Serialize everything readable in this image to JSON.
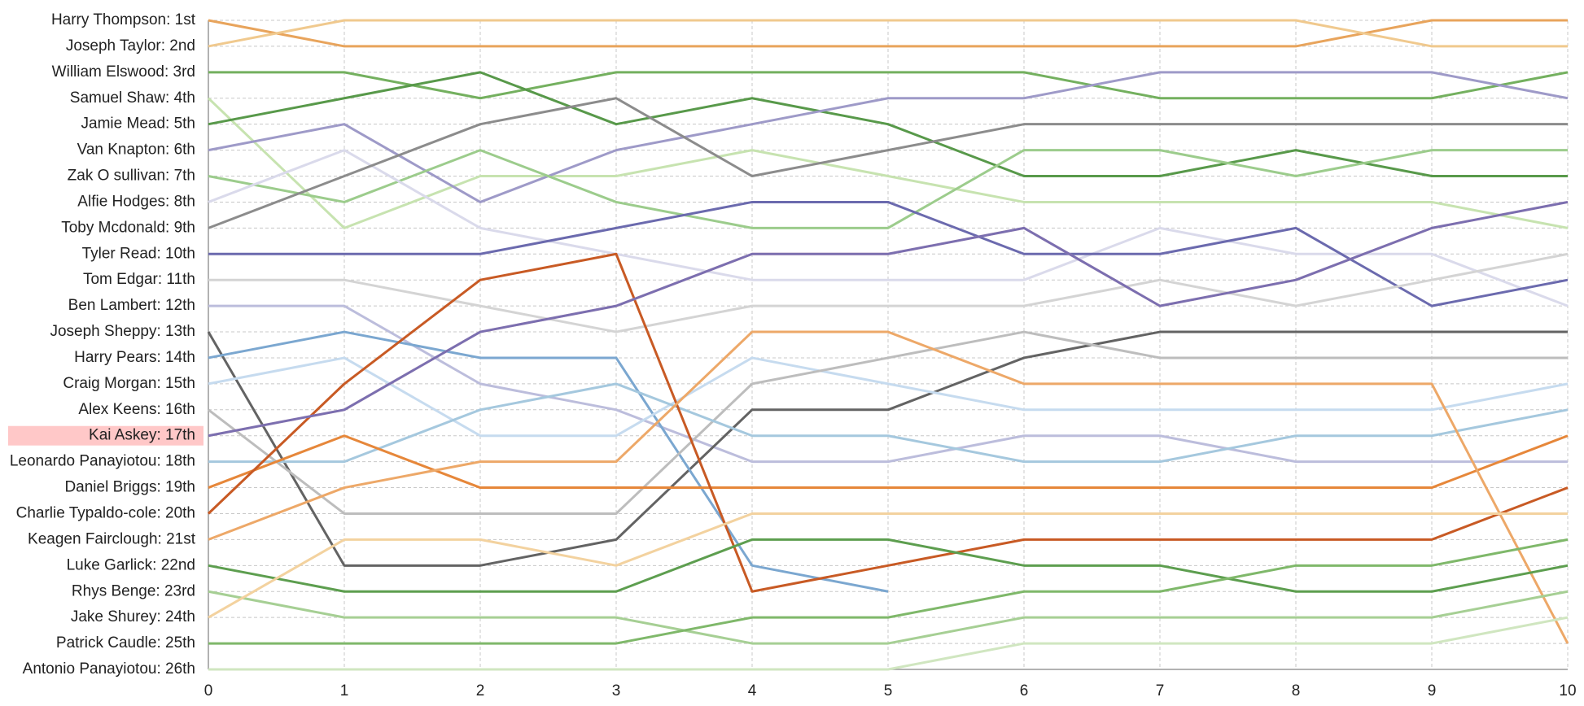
{
  "chart_data": {
    "type": "line",
    "x": [
      0,
      1,
      2,
      3,
      4,
      5,
      6,
      7,
      8,
      9,
      10
    ],
    "xlim": [
      0,
      10
    ],
    "xticks": [
      0,
      1,
      2,
      3,
      4,
      5,
      6,
      7,
      8,
      9,
      10
    ],
    "ylim": [
      1,
      26
    ],
    "y_inverted": true,
    "grid": true,
    "highlight": 16,
    "highlight_color": "#ffc8c8",
    "yticks": [
      {
        "value": 1,
        "label": "Harry Thompson: 1st"
      },
      {
        "value": 2,
        "label": "Joseph Taylor: 2nd"
      },
      {
        "value": 3,
        "label": "William Elswood: 3rd"
      },
      {
        "value": 4,
        "label": "Samuel Shaw: 4th"
      },
      {
        "value": 5,
        "label": "Jamie Mead: 5th"
      },
      {
        "value": 6,
        "label": "Van Knapton: 6th"
      },
      {
        "value": 7,
        "label": "Zak O sullivan: 7th"
      },
      {
        "value": 8,
        "label": "Alfie Hodges: 8th"
      },
      {
        "value": 9,
        "label": "Toby Mcdonald: 9th"
      },
      {
        "value": 10,
        "label": "Tyler Read: 10th"
      },
      {
        "value": 11,
        "label": "Tom Edgar: 11th"
      },
      {
        "value": 12,
        "label": "Ben Lambert: 12th"
      },
      {
        "value": 13,
        "label": "Joseph Sheppy: 13th"
      },
      {
        "value": 14,
        "label": "Harry Pears: 14th"
      },
      {
        "value": 15,
        "label": "Craig Morgan: 15th"
      },
      {
        "value": 16,
        "label": "Alex Keens: 16th"
      },
      {
        "value": 17,
        "label": "Kai Askey: 17th"
      },
      {
        "value": 18,
        "label": "Leonardo Panayiotou: 18th"
      },
      {
        "value": 19,
        "label": "Daniel Briggs: 19th"
      },
      {
        "value": 20,
        "label": "Charlie Typaldo-cole: 20th"
      },
      {
        "value": 21,
        "label": "Keagen Fairclough: 21st"
      },
      {
        "value": 22,
        "label": "Luke Garlick: 22nd"
      },
      {
        "value": 23,
        "label": "Rhys Benge: 23rd"
      },
      {
        "value": 24,
        "label": "Jake Shurey: 24th"
      },
      {
        "value": 25,
        "label": "Patrick Caudle: 25th"
      },
      {
        "value": 26,
        "label": "Antonio Panayiotou: 26th"
      }
    ],
    "series": [
      {
        "color": "#e8a45c",
        "values": [
          1,
          2,
          2,
          2,
          2,
          2,
          2,
          2,
          2,
          1,
          1
        ]
      },
      {
        "color": "#f0c98e",
        "values": [
          2,
          1,
          1,
          1,
          1,
          1,
          1,
          1,
          1,
          2,
          2
        ]
      },
      {
        "color": "#74b05f",
        "values": [
          3,
          3,
          4,
          3,
          3,
          3,
          3,
          4,
          4,
          4,
          3
        ]
      },
      {
        "color": "#c7e3b0",
        "values": [
          4,
          9,
          7,
          7,
          6,
          7,
          8,
          8,
          8,
          8,
          9
        ]
      },
      {
        "color": "#58994a",
        "values": [
          5,
          4,
          3,
          5,
          4,
          5,
          7,
          7,
          6,
          7,
          7
        ]
      },
      {
        "color": "#9e9ac8",
        "values": [
          6,
          5,
          8,
          6,
          5,
          4,
          4,
          3,
          3,
          3,
          4
        ]
      },
      {
        "color": "#9ccc8c",
        "values": [
          7,
          8,
          6,
          8,
          9,
          9,
          6,
          6,
          7,
          6,
          6
        ]
      },
      {
        "color": "#dadaeb",
        "values": [
          8,
          6,
          9,
          10,
          11,
          11,
          11,
          9,
          10,
          10,
          12
        ]
      },
      {
        "color": "#8c8c8c",
        "values": [
          9,
          7,
          5,
          4,
          7,
          6,
          5,
          5,
          5,
          5,
          5
        ]
      },
      {
        "color": "#6b6aae",
        "values": [
          10,
          10,
          10,
          9,
          8,
          8,
          10,
          10,
          9,
          12,
          11
        ]
      },
      {
        "color": "#d4d4d4",
        "values": [
          11,
          11,
          12,
          13,
          12,
          12,
          12,
          11,
          12,
          11,
          10
        ]
      },
      {
        "color": "#bcbddc",
        "values": [
          12,
          12,
          15,
          16,
          18,
          18,
          17,
          17,
          18,
          18,
          18
        ]
      },
      {
        "color": "#636363",
        "values": [
          13,
          22,
          22,
          21,
          16,
          16,
          14,
          13,
          13,
          13,
          13
        ]
      },
      {
        "color": "#7ba7d0",
        "values": [
          14,
          13,
          14,
          14,
          22,
          23,
          null,
          null,
          null,
          null,
          null
        ]
      },
      {
        "color": "#c6dbef",
        "values": [
          15,
          14,
          17,
          17,
          14,
          15,
          16,
          16,
          16,
          16,
          15
        ]
      },
      {
        "color": "#bdbdbd",
        "values": [
          16,
          20,
          20,
          20,
          15,
          14,
          13,
          14,
          14,
          14,
          14
        ]
      },
      {
        "color": "#7b6fb0",
        "values": [
          17,
          16,
          13,
          12,
          10,
          10,
          9,
          12,
          11,
          9,
          8
        ]
      },
      {
        "color": "#a5c8de",
        "values": [
          18,
          18,
          16,
          15,
          17,
          17,
          18,
          18,
          17,
          17,
          16
        ]
      },
      {
        "color": "#e6873a",
        "values": [
          19,
          17,
          19,
          19,
          19,
          19,
          19,
          19,
          19,
          19,
          17
        ]
      },
      {
        "color": "#c85a24",
        "values": [
          20,
          15,
          11,
          10,
          23,
          22,
          21,
          21,
          21,
          21,
          19
        ]
      },
      {
        "color": "#eda868",
        "values": [
          21,
          19,
          18,
          18,
          13,
          13,
          15,
          15,
          15,
          15,
          25
        ]
      },
      {
        "color": "#5d9e4f",
        "values": [
          22,
          23,
          23,
          23,
          21,
          21,
          22,
          22,
          23,
          23,
          22
        ]
      },
      {
        "color": "#a6cf94",
        "values": [
          23,
          24,
          24,
          24,
          25,
          25,
          24,
          24,
          24,
          24,
          23
        ]
      },
      {
        "color": "#f3d29f",
        "values": [
          24,
          21,
          21,
          22,
          20,
          20,
          20,
          20,
          20,
          20,
          20
        ]
      },
      {
        "color": "#7fb86a",
        "values": [
          25,
          25,
          25,
          25,
          24,
          24,
          23,
          23,
          22,
          22,
          21
        ]
      },
      {
        "color": "#d0e6c0",
        "values": [
          26,
          26,
          26,
          26,
          26,
          26,
          25,
          25,
          25,
          25,
          24
        ]
      }
    ]
  }
}
